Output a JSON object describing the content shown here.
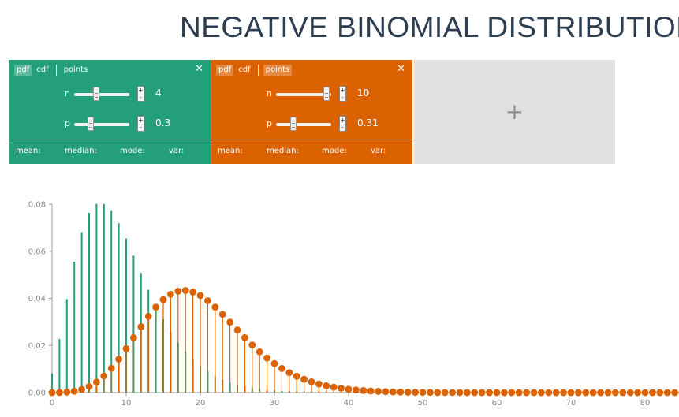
{
  "title": "NEGATIVE BINOMIAL DISTRIBUTION",
  "panels": [
    {
      "color": "#23a07a",
      "tabs": [
        "pdf",
        "cdf",
        "points"
      ],
      "active_tabs": [
        "pdf"
      ],
      "close_icon": "close-icon",
      "params": [
        {
          "label": "n",
          "value": "4",
          "slider_fraction": 0.4
        },
        {
          "label": "p",
          "value": "0.3",
          "slider_fraction": 0.3
        }
      ],
      "stats": {
        "mean": "mean:",
        "median": "median:",
        "mode": "mode:",
        "var": "var:"
      }
    },
    {
      "color": "#dc6200",
      "tabs": [
        "pdf",
        "cdf",
        "points"
      ],
      "active_tabs": [
        "pdf",
        "points"
      ],
      "close_icon": "close-icon",
      "params": [
        {
          "label": "n",
          "value": "10",
          "slider_fraction": 0.93
        },
        {
          "label": "p",
          "value": "0.31",
          "slider_fraction": 0.31
        }
      ],
      "stats": {
        "mean": "mean:",
        "median": "median:",
        "mode": "mode:",
        "var": "var:"
      }
    }
  ],
  "add_panel": {
    "icon": "plus-icon",
    "label": "+"
  },
  "stepper": {
    "plus": "+",
    "minus": "-"
  },
  "chart_data": {
    "type": "bar",
    "xlim": [
      0,
      85
    ],
    "ylim": [
      0,
      0.08
    ],
    "x_ticks": [
      0,
      10,
      20,
      30,
      40,
      50,
      60,
      70,
      80
    ],
    "y_ticks": [
      0.0,
      0.02,
      0.04,
      0.06,
      0.08
    ],
    "y_tick_labels": [
      "0.00",
      "0.02",
      "0.04",
      "0.06",
      "0.08"
    ],
    "grid": false,
    "series": [
      {
        "distribution": "negative binomial",
        "n": 4,
        "p": 0.3,
        "style": "stem",
        "color": "#23a07a",
        "x": [
          0,
          1,
          2,
          3,
          4,
          5,
          6,
          7,
          8,
          9,
          10,
          11,
          12,
          13,
          14,
          15,
          16,
          17,
          18,
          19,
          20,
          21,
          22,
          23,
          24,
          25,
          26,
          27,
          28,
          29,
          30,
          31,
          32,
          33,
          34,
          35,
          36,
          37,
          38,
          39,
          40,
          41,
          42,
          43,
          44,
          45,
          46,
          47,
          48,
          49,
          50
        ],
        "y": [
          0.0081,
          0.0227,
          0.0397,
          0.0556,
          0.0681,
          0.0763,
          0.0801,
          0.0801,
          0.0771,
          0.0719,
          0.0654,
          0.0581,
          0.0508,
          0.0437,
          0.0371,
          0.0311,
          0.0258,
          0.0213,
          0.0173,
          0.014,
          0.0113,
          0.009,
          0.0071,
          0.0056,
          0.0044,
          0.0034,
          0.0027,
          0.0021,
          0.0016,
          0.0012,
          0.0009,
          0.0007,
          0.0005,
          0.0004,
          0.0003,
          0.0002,
          0.0002,
          0.0001,
          0.0001,
          0.0001,
          0.0001,
          0,
          0,
          0,
          0,
          0,
          0,
          0,
          0,
          0,
          0
        ]
      },
      {
        "distribution": "negative binomial",
        "n": 10,
        "p": 0.31,
        "style": "stem-points",
        "color": "#dc6200",
        "x": [
          0,
          1,
          2,
          3,
          4,
          5,
          6,
          7,
          8,
          9,
          10,
          11,
          12,
          13,
          14,
          15,
          16,
          17,
          18,
          19,
          20,
          21,
          22,
          23,
          24,
          25,
          26,
          27,
          28,
          29,
          30,
          31,
          32,
          33,
          34,
          35,
          36,
          37,
          38,
          39,
          40,
          41,
          42,
          43,
          44,
          45,
          46,
          47,
          48,
          49,
          50,
          51,
          52,
          53,
          54,
          55,
          56,
          57,
          58,
          59,
          60,
          61,
          62,
          63,
          64,
          65,
          66,
          67,
          68,
          69,
          70,
          71,
          72,
          73,
          74,
          75,
          76,
          77,
          78,
          79,
          80,
          81,
          82,
          83,
          84,
          85
        ],
        "y": [
          8.2e-06,
          5.69e-05,
          0.0002159,
          0.0005959,
          0.0013358,
          0.0025814,
          0.0044532,
          0.0070225,
          0.0102976,
          0.0142088,
          0.0186072,
          0.0232759,
          0.0279551,
          0.0323736,
          0.0362763,
          0.0394481,
          0.0417304,
          0.0430327,
          0.0433364,
          0.0426907,
          0.0412011,
          0.0390126,
          0.036291,
          0.0332073,
          0.0299237,
          0.0265848,
          0.0233114,
          0.0201965,
          0.0173041,
          0.0146731,
          0.0123222,
          0.0102548,
          0.0084631,
          0.0069303,
          0.0056343,
          0.0045495,
          0.0036501,
          0.0029108,
          0.002308,
          0.0018201,
          0.001428,
          0.0011148,
          0.0008662,
          0.00067,
          0.0005161,
          0.0003959,
          0.0003025,
          0.0002303,
          0.0001747,
          0.0001321,
          9.95e-05,
          7.47e-05,
          5.59e-05,
          4.18e-05,
          3.11e-05,
          2.31e-05,
          1.71e-05,
          1.26e-05,
          9.3e-06,
          6.8e-06,
          5e-06,
          3.7e-06,
          2.7e-06,
          2e-06,
          1.4e-06,
          1e-06,
          8e-07,
          5e-07,
          4e-07,
          3e-07,
          2e-07,
          2e-07,
          1e-07,
          1e-07,
          1e-07,
          0,
          0,
          0,
          0,
          0,
          0,
          0,
          0,
          0,
          0,
          0
        ]
      }
    ]
  }
}
